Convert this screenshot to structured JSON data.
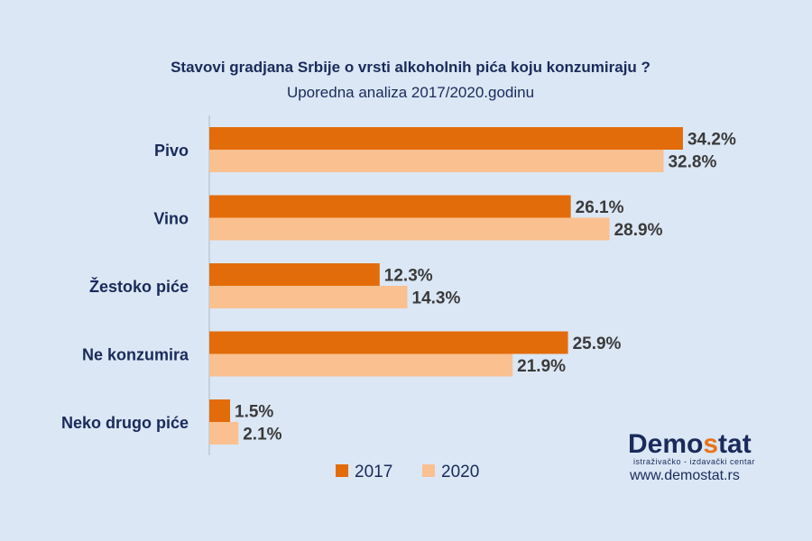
{
  "colors": {
    "series_2017": "#e36c0a",
    "series_2020": "#fac090",
    "text": "#1a2a5a",
    "background": "#dbe7f5"
  },
  "logo": {
    "name_part1": "Demo",
    "name_accent": "s",
    "name_part2": "tat",
    "tagline": "istraživačko - izdavački centar",
    "url": "www.demostat.rs"
  },
  "chart_data": {
    "type": "bar",
    "orientation": "horizontal",
    "title": "Stavovi gradjana Srbije o vrsti alkoholnih pića koju konzumiraju ?",
    "subtitle": "Uporedna analiza  2017/2020.godinu",
    "categories": [
      "Pivo",
      "Vino",
      "Žestoko piće",
      "Ne konzumira",
      "Neko drugo piće"
    ],
    "series": [
      {
        "name": "2017",
        "values": [
          34.2,
          26.1,
          12.3,
          25.9,
          1.5
        ],
        "labels": [
          "34.2%",
          "26.1%",
          "12.3%",
          "25.9%",
          "1.5%"
        ]
      },
      {
        "name": "2020",
        "values": [
          32.8,
          28.9,
          14.3,
          21.9,
          2.1
        ],
        "labels": [
          "32.8%",
          "28.9%",
          "14.3%",
          "21.9%",
          "2.1%"
        ]
      }
    ],
    "xlim": [
      0,
      40
    ],
    "grid": false,
    "legend_position": "bottom"
  }
}
